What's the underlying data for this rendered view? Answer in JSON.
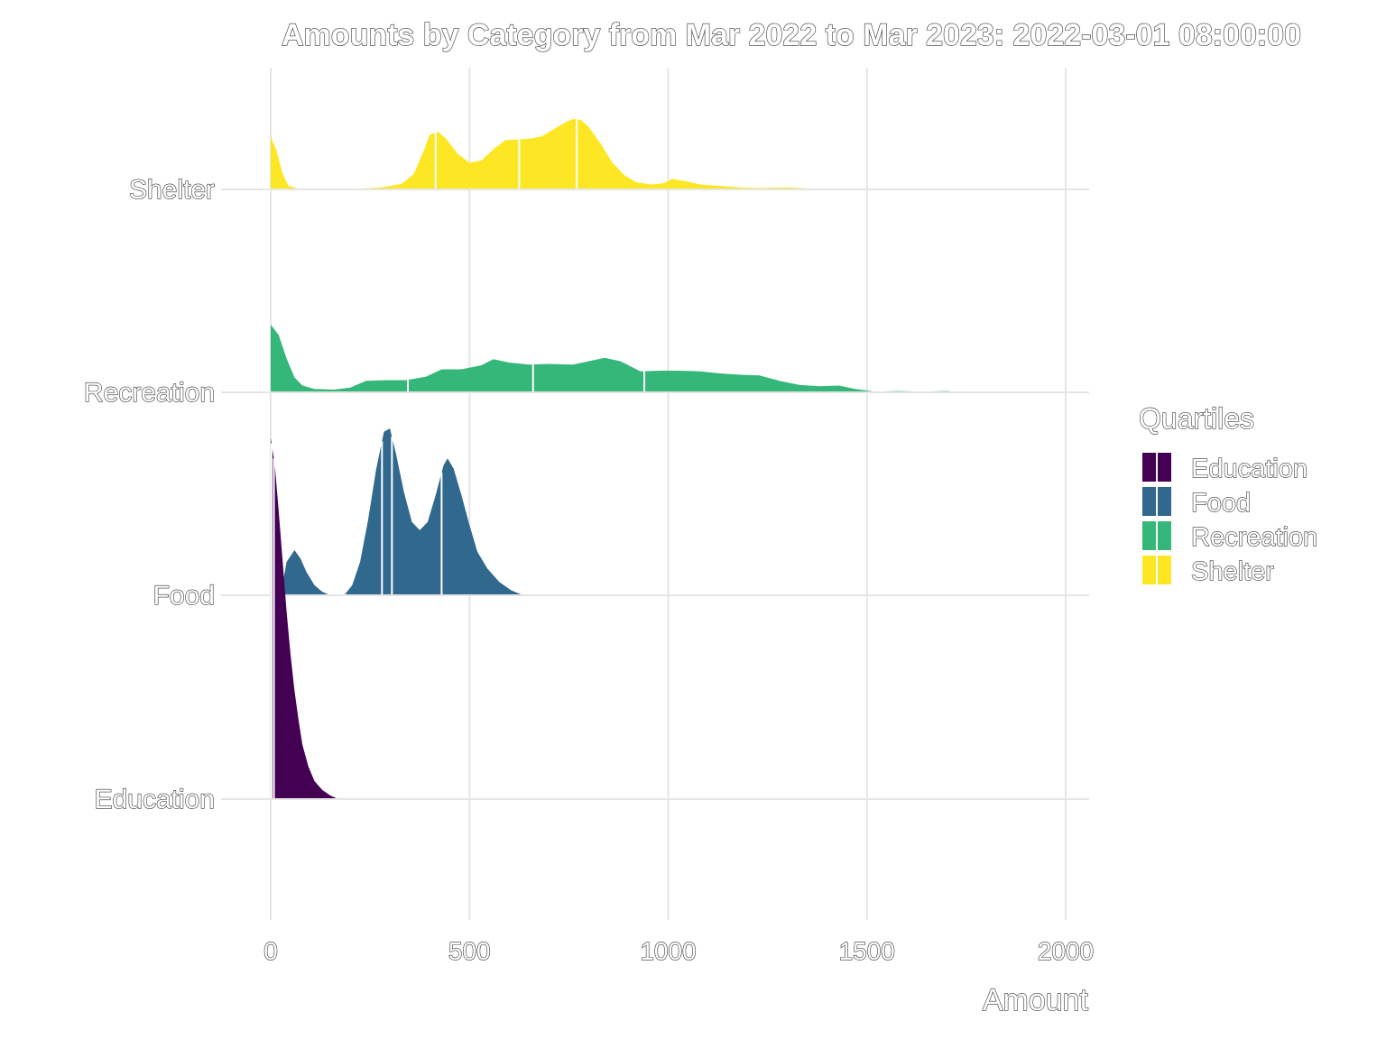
{
  "chart_data": {
    "type": "ridgeline",
    "title": "Amounts by Category from Mar 2022 to Mar 2023: 2022-03-01 08:00:00",
    "xlabel": "Amount",
    "ylabel": "",
    "xlim": [
      0,
      2000
    ],
    "x_ticks": [
      0,
      500,
      1000,
      1500,
      2000
    ],
    "x_tick_labels": [
      "0",
      "500",
      "1000",
      "1500",
      "2000"
    ],
    "grid": true,
    "legend": {
      "title": "Quartiles",
      "position": "right"
    },
    "categories": [
      "Education",
      "Food",
      "Recreation",
      "Shelter"
    ],
    "series": [
      {
        "name": "Education",
        "color": "#440154",
        "quartiles": [
          2,
          8
        ],
        "density": [
          [
            0,
            1.0
          ],
          [
            10,
            0.93
          ],
          [
            20,
            0.8
          ],
          [
            30,
            0.66
          ],
          [
            40,
            0.52
          ],
          [
            50,
            0.4
          ],
          [
            60,
            0.3
          ],
          [
            70,
            0.22
          ],
          [
            80,
            0.15
          ],
          [
            95,
            0.09
          ],
          [
            110,
            0.05
          ],
          [
            130,
            0.025
          ],
          [
            150,
            0.01
          ],
          [
            170,
            0.0
          ]
        ]
      },
      {
        "name": "Food",
        "color": "#31688e",
        "quartiles": [
          280,
          305,
          430
        ],
        "density": [
          [
            0,
            0.0
          ],
          [
            25,
            0.0
          ],
          [
            40,
            0.2
          ],
          [
            60,
            0.27
          ],
          [
            75,
            0.22
          ],
          [
            90,
            0.14
          ],
          [
            110,
            0.06
          ],
          [
            130,
            0.02
          ],
          [
            150,
            0.0
          ],
          [
            185,
            0.0
          ],
          [
            205,
            0.06
          ],
          [
            225,
            0.2
          ],
          [
            245,
            0.45
          ],
          [
            265,
            0.75
          ],
          [
            285,
            0.98
          ],
          [
            300,
            1.0
          ],
          [
            315,
            0.85
          ],
          [
            335,
            0.62
          ],
          [
            355,
            0.44
          ],
          [
            375,
            0.39
          ],
          [
            395,
            0.44
          ],
          [
            415,
            0.6
          ],
          [
            435,
            0.78
          ],
          [
            445,
            0.82
          ],
          [
            460,
            0.76
          ],
          [
            480,
            0.6
          ],
          [
            500,
            0.42
          ],
          [
            520,
            0.26
          ],
          [
            545,
            0.16
          ],
          [
            575,
            0.08
          ],
          [
            605,
            0.03
          ],
          [
            635,
            0.0
          ]
        ]
      },
      {
        "name": "Recreation",
        "color": "#35b779",
        "quartiles": [
          345,
          660,
          940
        ],
        "density": [
          [
            0,
            1.0
          ],
          [
            20,
            0.85
          ],
          [
            40,
            0.5
          ],
          [
            60,
            0.22
          ],
          [
            80,
            0.1
          ],
          [
            110,
            0.05
          ],
          [
            160,
            0.04
          ],
          [
            200,
            0.07
          ],
          [
            240,
            0.17
          ],
          [
            290,
            0.18
          ],
          [
            340,
            0.18
          ],
          [
            390,
            0.23
          ],
          [
            430,
            0.34
          ],
          [
            480,
            0.34
          ],
          [
            530,
            0.4
          ],
          [
            560,
            0.49
          ],
          [
            600,
            0.44
          ],
          [
            650,
            0.41
          ],
          [
            700,
            0.42
          ],
          [
            760,
            0.41
          ],
          [
            800,
            0.46
          ],
          [
            840,
            0.51
          ],
          [
            880,
            0.46
          ],
          [
            930,
            0.31
          ],
          [
            980,
            0.32
          ],
          [
            1030,
            0.32
          ],
          [
            1080,
            0.31
          ],
          [
            1130,
            0.28
          ],
          [
            1180,
            0.26
          ],
          [
            1230,
            0.25
          ],
          [
            1280,
            0.17
          ],
          [
            1330,
            0.11
          ],
          [
            1380,
            0.09
          ],
          [
            1430,
            0.1
          ],
          [
            1470,
            0.05
          ],
          [
            1520,
            0.01
          ],
          [
            1580,
            0.02
          ],
          [
            1640,
            0.01
          ],
          [
            1700,
            0.02
          ],
          [
            1740,
            0.0
          ],
          [
            1760,
            0.0
          ],
          [
            1820,
            0.0
          ],
          [
            1850,
            0.0
          ],
          [
            1950,
            0.0
          ],
          [
            1980,
            0.0
          ]
        ]
      },
      {
        "name": "Shelter",
        "color": "#fde725",
        "quartiles": [
          415,
          625,
          770
        ],
        "density": [
          [
            0,
            0.75
          ],
          [
            15,
            0.55
          ],
          [
            30,
            0.22
          ],
          [
            45,
            0.05
          ],
          [
            70,
            0.01
          ],
          [
            100,
            0.0
          ],
          [
            150,
            0.0
          ],
          [
            220,
            0.01
          ],
          [
            280,
            0.03
          ],
          [
            330,
            0.08
          ],
          [
            360,
            0.22
          ],
          [
            385,
            0.55
          ],
          [
            400,
            0.78
          ],
          [
            420,
            0.82
          ],
          [
            440,
            0.73
          ],
          [
            470,
            0.51
          ],
          [
            500,
            0.38
          ],
          [
            530,
            0.41
          ],
          [
            560,
            0.57
          ],
          [
            590,
            0.7
          ],
          [
            620,
            0.71
          ],
          [
            650,
            0.72
          ],
          [
            680,
            0.75
          ],
          [
            710,
            0.85
          ],
          [
            740,
            0.95
          ],
          [
            760,
            1.0
          ],
          [
            780,
            0.99
          ],
          [
            800,
            0.89
          ],
          [
            830,
            0.65
          ],
          [
            860,
            0.38
          ],
          [
            890,
            0.2
          ],
          [
            920,
            0.1
          ],
          [
            960,
            0.07
          ],
          [
            990,
            0.09
          ],
          [
            1010,
            0.15
          ],
          [
            1040,
            0.12
          ],
          [
            1080,
            0.07
          ],
          [
            1130,
            0.05
          ],
          [
            1180,
            0.03
          ],
          [
            1230,
            0.02
          ],
          [
            1300,
            0.03
          ],
          [
            1360,
            0.01
          ],
          [
            1450,
            0.005
          ],
          [
            1550,
            0.005
          ],
          [
            1640,
            0.0
          ]
        ]
      }
    ]
  }
}
